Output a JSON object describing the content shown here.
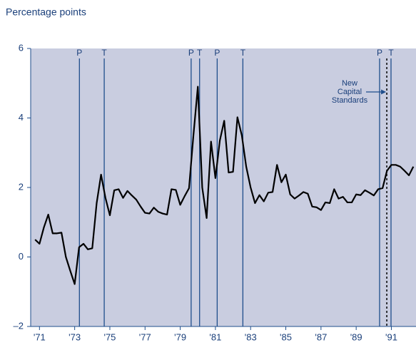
{
  "chart_data": {
    "type": "line",
    "y_label": "Percentage points",
    "x": [
      1970.75,
      1971,
      1971.25,
      1971.5,
      1971.75,
      1972,
      1972.25,
      1972.5,
      1972.75,
      1973,
      1973.25,
      1973.5,
      1973.75,
      1974,
      1974.25,
      1974.5,
      1974.75,
      1975,
      1975.25,
      1975.5,
      1975.75,
      1976,
      1976.25,
      1976.5,
      1976.75,
      1977,
      1977.25,
      1977.5,
      1977.75,
      1978,
      1978.25,
      1978.5,
      1978.75,
      1979,
      1979.25,
      1979.5,
      1979.75,
      1980,
      1980.25,
      1980.5,
      1980.75,
      1981,
      1981.25,
      1981.5,
      1981.75,
      1982,
      1982.25,
      1982.5,
      1982.75,
      1983,
      1983.25,
      1983.5,
      1983.75,
      1984,
      1984.25,
      1984.5,
      1984.75,
      1985,
      1985.25,
      1985.5,
      1985.75,
      1986,
      1986.25,
      1986.5,
      1986.75,
      1987,
      1987.25,
      1987.5,
      1987.75,
      1988,
      1988.25,
      1988.5,
      1988.75,
      1989,
      1989.25,
      1989.5,
      1989.75,
      1990,
      1990.25,
      1990.5,
      1990.75,
      1991,
      1991.25,
      1991.5,
      1991.75,
      1992,
      1992.25
    ],
    "series": [
      {
        "color": "#000000",
        "values": [
          0.5,
          0.38,
          0.85,
          1.22,
          0.68,
          0.68,
          0.7,
          0.0,
          -0.4,
          -0.78,
          0.28,
          0.38,
          0.22,
          0.25,
          1.55,
          2.37,
          1.7,
          1.2,
          1.92,
          1.95,
          1.7,
          1.9,
          1.77,
          1.65,
          1.45,
          1.27,
          1.25,
          1.42,
          1.3,
          1.25,
          1.22,
          1.95,
          1.93,
          1.5,
          1.75,
          1.98,
          3.5,
          4.9,
          2.0,
          1.12,
          3.32,
          2.27,
          3.35,
          3.92,
          2.43,
          2.45,
          4.02,
          3.5,
          2.6,
          2.0,
          1.55,
          1.78,
          1.6,
          1.85,
          1.87,
          2.65,
          2.15,
          2.37,
          1.8,
          1.68,
          1.77,
          1.87,
          1.82,
          1.45,
          1.43,
          1.35,
          1.57,
          1.55,
          1.95,
          1.68,
          1.73,
          1.57,
          1.57,
          1.8,
          1.78,
          1.92,
          1.85,
          1.77,
          1.95,
          1.98,
          2.48,
          2.65,
          2.65,
          2.6,
          2.48,
          2.35,
          2.6
        ]
      }
    ],
    "xlim": [
      1970.5,
      1992.4
    ],
    "ylim": [
      -2,
      6
    ],
    "yticks": [
      {
        "value": -2,
        "label": "–2"
      },
      0,
      2,
      4,
      6
    ],
    "xticks": [
      {
        "value": 1971,
        "label": "'71"
      },
      {
        "value": 1973,
        "label": "'73"
      },
      {
        "value": 1975,
        "label": "'75"
      },
      {
        "value": 1977,
        "label": "'77"
      },
      {
        "value": 1979,
        "label": "'79"
      },
      {
        "value": 1981,
        "label": "'81"
      },
      {
        "value": 1983,
        "label": "'83"
      },
      {
        "value": 1985,
        "label": "'85"
      },
      {
        "value": 1987,
        "label": "'87"
      },
      {
        "value": 1989,
        "label": "'89"
      },
      {
        "value": 1991,
        "label": "'91"
      }
    ],
    "cycle_lines": [
      {
        "label": "P",
        "x": 1973.27
      },
      {
        "label": "T",
        "x": 1974.68
      },
      {
        "label": "P",
        "x": 1979.62
      },
      {
        "label": "T",
        "x": 1980.1
      },
      {
        "label": "P",
        "x": 1981.1
      },
      {
        "label": "T",
        "x": 1982.56
      },
      {
        "label": "P",
        "x": 1990.33
      },
      {
        "label": "T",
        "x": 1990.98
      }
    ],
    "annotation": {
      "lines": [
        "New",
        "Capital",
        "Standards"
      ],
      "x": 1990.74
    }
  }
}
